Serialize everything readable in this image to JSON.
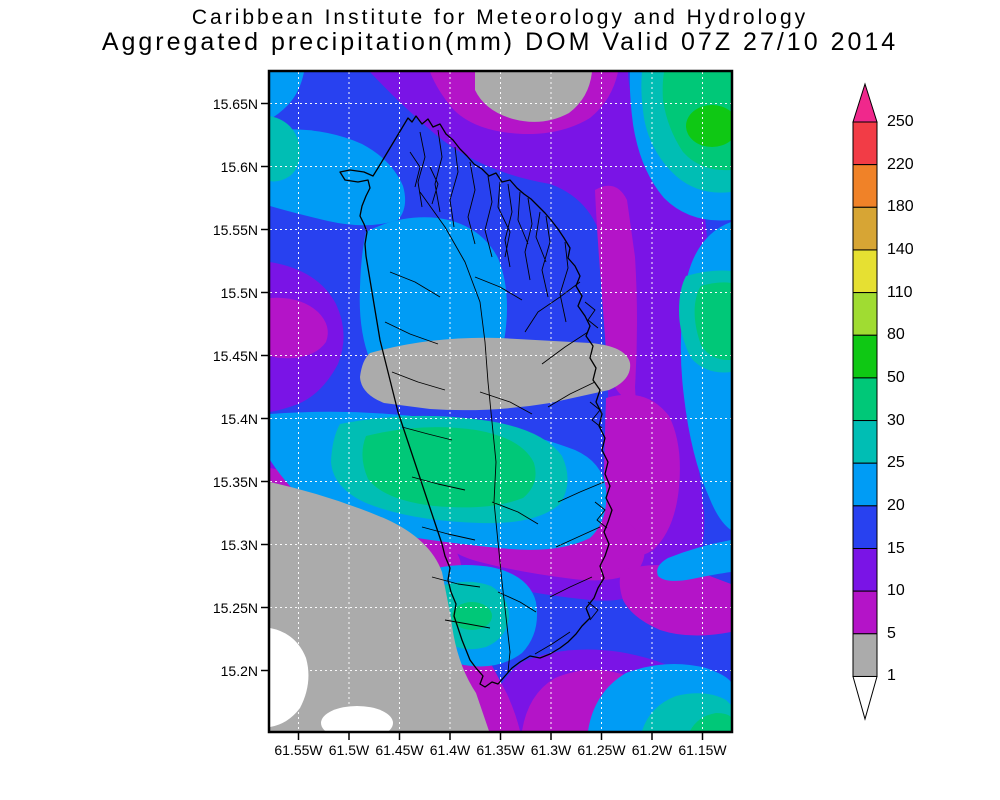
{
  "title": {
    "line1": "Caribbean Institute for Meteorology and Hydrology",
    "line2": "Aggregated precipitation(mm) DOM Valid 07Z 27/10 2014"
  },
  "axes": {
    "lat_labels": [
      "15.65N",
      "15.6N",
      "15.55N",
      "15.5N",
      "15.45N",
      "15.4N",
      "15.35N",
      "15.3N",
      "15.25N",
      "15.2N"
    ],
    "lon_labels": [
      "61.55W",
      "61.5W",
      "61.45W",
      "61.4W",
      "61.35W",
      "61.3W",
      "61.25W",
      "61.2W",
      "61.15W"
    ]
  },
  "legend": {
    "levels": [
      "250",
      "220",
      "180",
      "140",
      "110",
      "80",
      "50",
      "30",
      "25",
      "20",
      "15",
      "10",
      "5",
      "1"
    ],
    "above_top_color": "#F0288C",
    "segment_colors": [
      "#F23C46",
      "#F08228",
      "#D7A534",
      "#E6E032",
      "#A0DC32",
      "#0FC814",
      "#00C878",
      "#00BEB4",
      "#009CF5",
      "#2841F0",
      "#7A14E6",
      "#B414C8",
      "#ABABAB"
    ],
    "below_bottom_color": "#FFFFFF"
  },
  "chart_data": {
    "type": "heatmap",
    "subtype": "filled-contour-precipitation-map",
    "title": "Caribbean Institute for Meteorology and Hydrology",
    "subtitle": "Aggregated precipitation(mm) DOM Valid 07Z 27/10 2014",
    "parameter": "Aggregated precipitation",
    "units": "mm",
    "region": "DOM (Dominica)",
    "valid_time": "07Z 27/10 2014",
    "lat_ticks": [
      15.65,
      15.6,
      15.55,
      15.5,
      15.45,
      15.4,
      15.35,
      15.3,
      15.25,
      15.2
    ],
    "lon_ticks": [
      -61.55,
      -61.5,
      -61.45,
      -61.4,
      -61.35,
      -61.3,
      -61.25,
      -61.2,
      -61.15
    ],
    "contour_levels_mm": [
      1,
      5,
      10,
      15,
      20,
      25,
      30,
      50,
      80,
      110,
      140,
      180,
      220,
      250
    ],
    "palette_low_to_high": [
      "#FFFFFF",
      "#ABABAB",
      "#B414C8",
      "#7A14E6",
      "#2841F0",
      "#009CF5",
      "#00BEB4",
      "#00C878",
      "#0FC814",
      "#A0DC32",
      "#E6E032",
      "#D7A534",
      "#F08228",
      "#F23C46",
      "#F0288C"
    ],
    "field_summary": {
      "max_band_on_map_mm": "50-80 (green spot NE corner)",
      "island_interior": "mostly 15-25 mm north, 30-50 mm core mid-west of island, 1-5 mm (gray) band across island center",
      "southwest_offshore": "below 1 mm (white) to 1-5 mm (gray)",
      "east_of_island": "5-15 mm bands with 20-50 mm near east edge"
    },
    "grid": true,
    "legend_position": "right"
  }
}
